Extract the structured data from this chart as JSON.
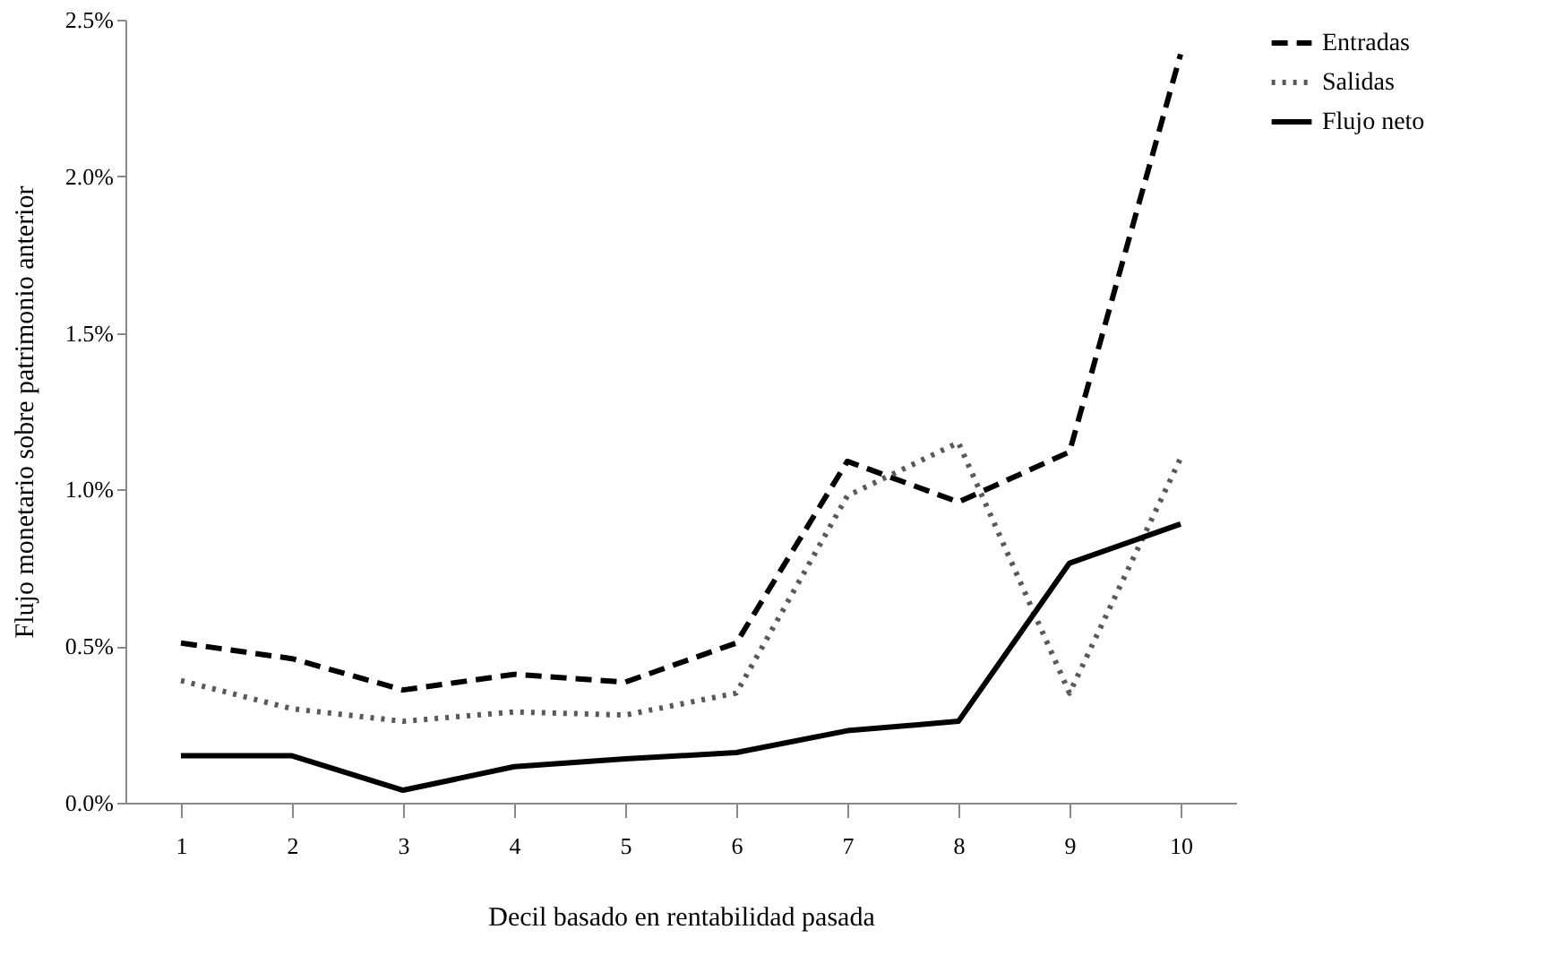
{
  "chart_data": {
    "type": "line",
    "xlabel": "Decil basado en rentabilidad pasada",
    "ylabel": "Flujo monetario sobre patrimonio anterior",
    "categories": [
      "1",
      "2",
      "3",
      "4",
      "5",
      "6",
      "7",
      "8",
      "9",
      "10"
    ],
    "series": [
      {
        "name": "Entradas",
        "color": "#000000",
        "line_style": "dashed",
        "values": [
          0.51,
          0.46,
          0.36,
          0.41,
          0.385,
          0.51,
          1.09,
          0.96,
          1.12,
          2.39
        ]
      },
      {
        "name": "Salidas",
        "color": "#595959",
        "line_style": "dotted",
        "values": [
          0.39,
          0.3,
          0.26,
          0.29,
          0.28,
          0.35,
          0.98,
          1.15,
          0.35,
          1.1
        ]
      },
      {
        "name": "Flujo neto",
        "color": "#000000",
        "line_style": "solid",
        "values": [
          0.15,
          0.15,
          0.04,
          0.115,
          0.14,
          0.16,
          0.23,
          0.26,
          0.765,
          0.89
        ]
      }
    ],
    "ylim": [
      0,
      2.5
    ],
    "yticks": [
      {
        "value": 0,
        "label": "0.0%"
      },
      {
        "value": 0.5,
        "label": "0.5%"
      },
      {
        "value": 1,
        "label": "1.0%"
      },
      {
        "value": 1.5,
        "label": "1.5%"
      },
      {
        "value": 2,
        "label": "2.0%"
      },
      {
        "value": 2.5,
        "label": "2.5%"
      }
    ],
    "legend": "right",
    "grid": false
  }
}
